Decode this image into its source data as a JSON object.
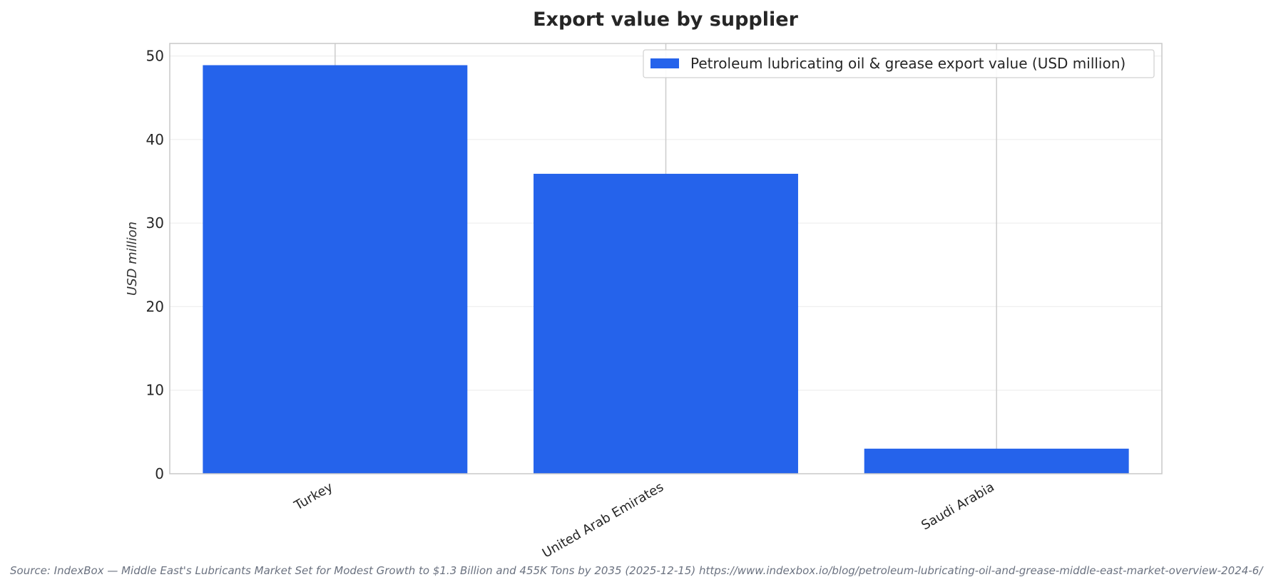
{
  "chart_data": {
    "type": "bar",
    "title": "Export value by supplier",
    "xlabel": "",
    "ylabel": "USD million",
    "categories": [
      "Turkey",
      "United Arab Emirates",
      "Saudi Arabia"
    ],
    "series": [
      {
        "name": "Petroleum lubricating oil & grease export value (USD million)",
        "values": [
          48.9,
          35.9,
          3.0
        ],
        "color": "#2563eb"
      }
    ],
    "ylim": [
      0,
      51.5
    ],
    "yticks": [
      "0",
      "10",
      "20",
      "30",
      "40",
      "50"
    ],
    "grid": true,
    "legend_position": "top-right"
  },
  "footer": {
    "source": "Source: IndexBox — Middle East's Lubricants Market Set for Modest Growth to $1.3 Billion and 455K Tons by 2035 (2025-12-15) https://www.indexbox.io/blog/petroleum-lubricating-oil-and-grease-middle-east-market-overview-2024-6/"
  }
}
